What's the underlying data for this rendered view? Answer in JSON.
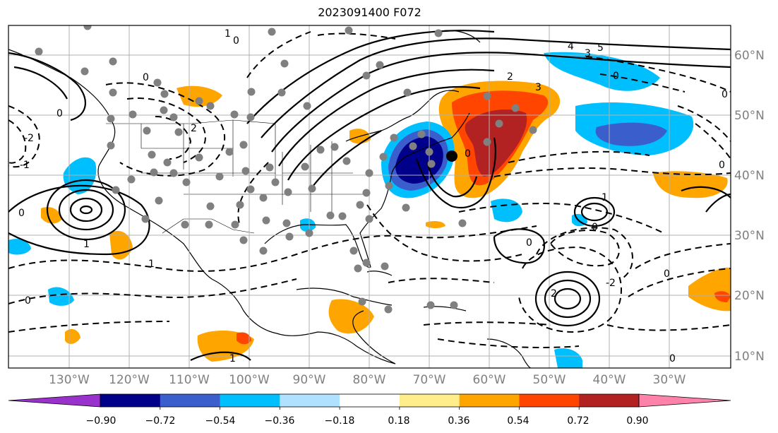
{
  "title": "2023091400 F072",
  "longitude_labels": [
    "130°W",
    "120°W",
    "110°W",
    "100°W",
    "90°W",
    "80°W",
    "70°W",
    "60°W",
    "50°W",
    "40°W",
    "30°W"
  ],
  "latitude_labels": [
    "60°N",
    "50°N",
    "40°N",
    "30°N",
    "20°N",
    "10°N"
  ],
  "colorbar": {
    "tick_labels": [
      "−0.90",
      "−0.72",
      "−0.54",
      "−0.36",
      "−0.18",
      "0.18",
      "0.36",
      "0.54",
      "0.72",
      "0.90"
    ],
    "colors": [
      "#9932cc",
      "#00008b",
      "#3a5fcd",
      "#00bfff",
      "#b0e2ff",
      "#ffffff",
      "#ffec8b",
      "#ffa500",
      "#ff4500",
      "#b22222",
      "#ff82ab"
    ]
  },
  "contour_labels": [
    "0",
    "1",
    "2",
    "3",
    "4",
    "5",
    "-1",
    "-2"
  ],
  "station_marker_color": "#808080"
}
